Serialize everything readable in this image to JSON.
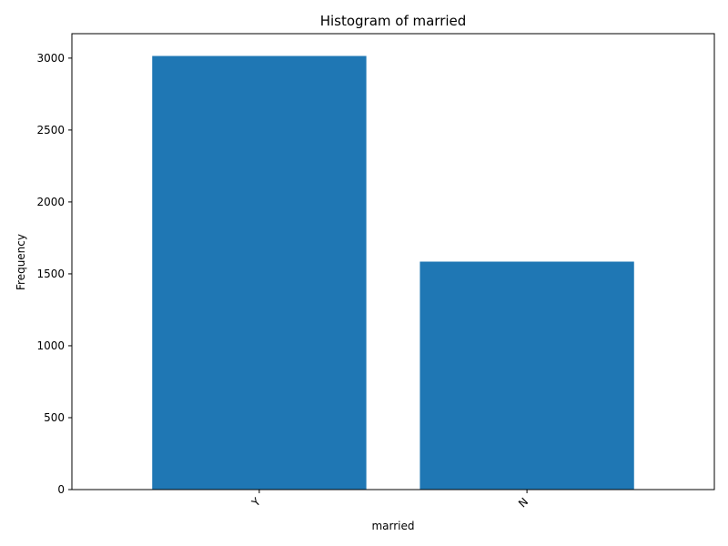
{
  "chart_data": {
    "type": "bar",
    "title": "Histogram of married",
    "xlabel": "married",
    "ylabel": "Frequency",
    "categories": [
      "Y",
      "N"
    ],
    "values": [
      3015,
      1585
    ],
    "ylim": [
      0,
      3170
    ],
    "yticks": [
      0,
      500,
      1000,
      1500,
      2000,
      2500,
      3000
    ],
    "bar_color": "#1f77b4",
    "grid": false,
    "legend": "none"
  }
}
